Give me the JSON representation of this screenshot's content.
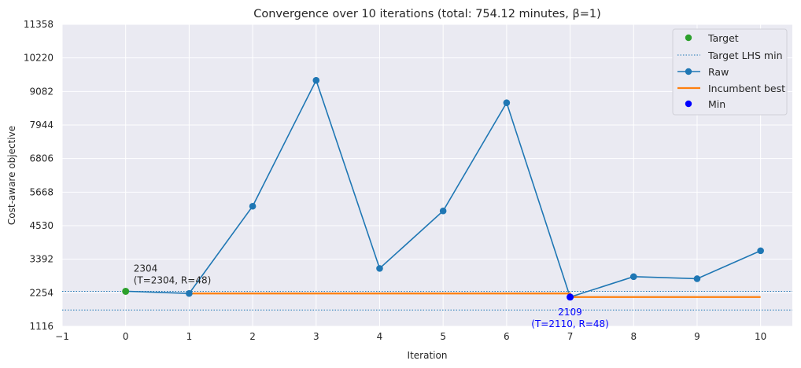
{
  "chart_data": {
    "type": "line",
    "title": "Convergence over 10 iterations (total: 754.12 minutes, β=1)",
    "xlabel": "Iteration",
    "ylabel": "Cost-aware objective",
    "xlim": [
      -1,
      10.5
    ],
    "ylim": [
      1116,
      11358
    ],
    "xticks": [
      -1,
      0,
      1,
      2,
      3,
      4,
      5,
      6,
      7,
      8,
      9,
      10
    ],
    "yticks": [
      1116,
      2254,
      3392,
      4530,
      5668,
      6806,
      7944,
      9082,
      10220,
      11358
    ],
    "xtick_labels": [
      "−1",
      "0",
      "1",
      "2",
      "3",
      "4",
      "5",
      "6",
      "7",
      "8",
      "9",
      "10"
    ],
    "ytick_labels": [
      "1116",
      "2254",
      "3392",
      "4530",
      "5668",
      "6806",
      "7944",
      "9082",
      "10220",
      "11358"
    ],
    "grid": true,
    "legend_position": "top-right",
    "colors": {
      "background": "#eaeaf2",
      "grid": "#ffffff",
      "raw": "#1f77b4",
      "incumbent": "#ff7f0e",
      "target": "#2ca02c",
      "min": "#0000ff",
      "text": "#262626"
    },
    "series": [
      {
        "name": "Raw",
        "x": [
          0,
          1,
          2,
          3,
          4,
          5,
          6,
          7,
          8,
          9,
          10
        ],
        "y": [
          2304,
          2230,
          5190,
          9460,
          3080,
          5030,
          8700,
          2109,
          2800,
          2730,
          3680
        ]
      },
      {
        "name": "Incumbent best",
        "x": [
          1,
          2,
          3,
          4,
          5,
          6,
          7,
          8,
          9,
          10
        ],
        "y": [
          2230,
          2230,
          2230,
          2230,
          2230,
          2230,
          2109,
          2109,
          2109,
          2109
        ]
      }
    ],
    "target_point": {
      "name": "Target",
      "x": 0,
      "y": 2304
    },
    "min_point": {
      "name": "Min",
      "x": 7,
      "y": 2109
    },
    "target_lhs_min": {
      "name": "Target LHS min",
      "values": [
        2304,
        1670
      ]
    },
    "annotations": [
      {
        "line1": "2304",
        "line2": "(T=2304, R=48)",
        "x": 0,
        "y": 2304
      },
      {
        "line1": "2109",
        "line2": "(T=2110, R=48)",
        "x": 7,
        "y": 2109
      }
    ],
    "legend": [
      "Target",
      "Target LHS min",
      "Raw",
      "Incumbent best",
      "Min"
    ]
  }
}
